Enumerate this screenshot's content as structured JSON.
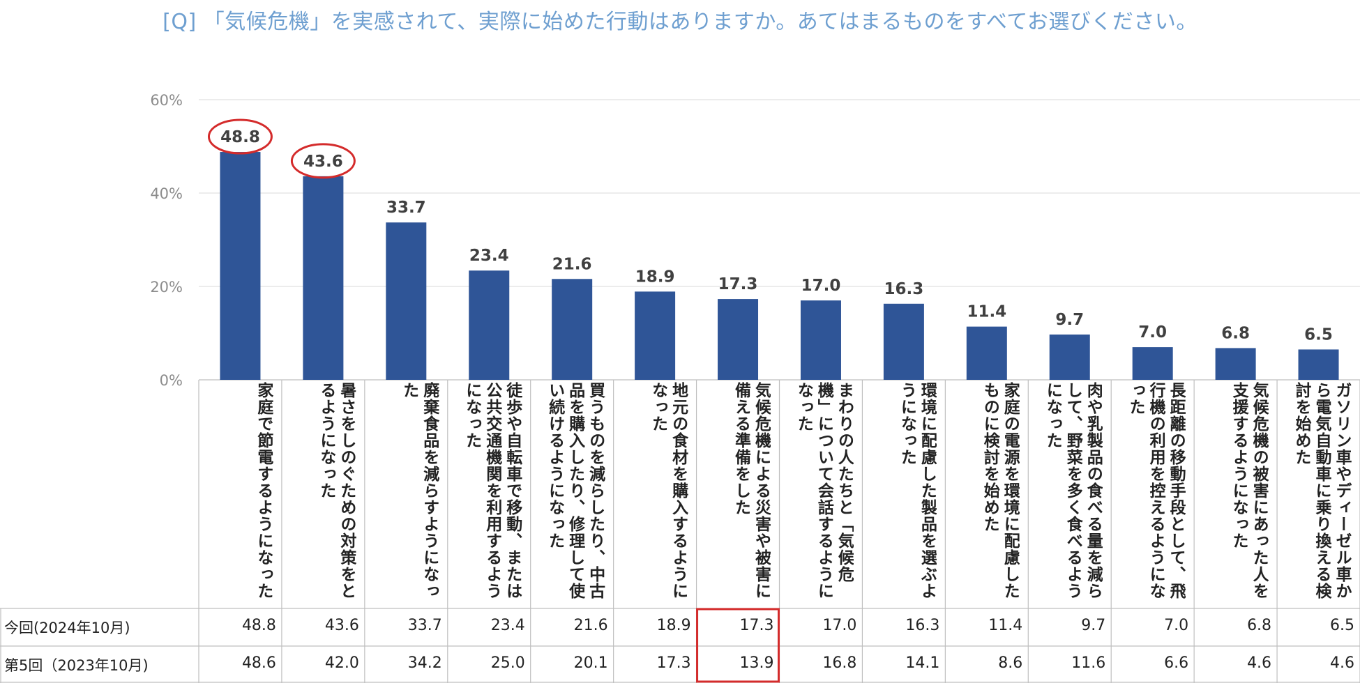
{
  "title": "[Q] 「気候危機」を実感されて、実際に始めた行動はありますか。あてはまるものをすべてお選びください。",
  "colors": {
    "bar": "#2f5597",
    "title": "#6e9fd0",
    "highlight": "#d42b2b"
  },
  "chart_data": {
    "type": "bar",
    "categories": [
      "家庭で節電するようになった",
      "暑さをしのぐための対策をとるようになった",
      "廃棄食品を減らすようになった",
      "徒歩や自転車で移動、または公共交通機関を利用するようになった",
      "買うものを減らしたり、中古品を購入したり、修理して使い続けるようになった",
      "地元の食材を購入するようになった",
      "気候危機による災害や被害に備える準備をした",
      "まわりの人たちと「気候危機」について会話するようになった",
      "環境に配慮した製品を選ぶようになった",
      "家庭の電源を環境に配慮したものに検討を始めた",
      "肉や乳製品の食べる量を減らして、野菜を多く食べるようになった",
      "長距離の移動手段として、飛行機の利用を控えるようになった",
      "気候危機の被害にあった人を支援するようになった",
      "ガソリン車やディーゼル車から電気自動車に乗り換える検討を始めた"
    ],
    "values": [
      48.8,
      43.6,
      33.7,
      23.4,
      21.6,
      18.9,
      17.3,
      17.0,
      16.3,
      11.4,
      9.7,
      7.0,
      6.8,
      6.5
    ],
    "data_labels": [
      "48.8",
      "43.6",
      "33.7",
      "23.4",
      "21.6",
      "18.9",
      "17.3",
      "17.0",
      "16.3",
      "11.4",
      "9.7",
      "7.0",
      "6.8",
      "6.5"
    ],
    "yticks": [
      "0%",
      "20%",
      "40%",
      "60%"
    ],
    "ylim": [
      0,
      60
    ],
    "grid": true,
    "circled_indices": [
      0,
      1
    ],
    "table": {
      "rows": [
        {
          "label": "今回(2024年10月)",
          "values": [
            "48.8",
            "43.6",
            "33.7",
            "23.4",
            "21.6",
            "18.9",
            "17.3",
            "17.0",
            "16.3",
            "11.4",
            "9.7",
            "7.0",
            "6.8",
            "6.5"
          ]
        },
        {
          "label": "第5回（2023年10月)",
          "values": [
            "48.6",
            "42.0",
            "34.2",
            "25.0",
            "20.1",
            "17.3",
            "13.9",
            "16.8",
            "14.1",
            "8.6",
            "11.6",
            "6.6",
            "4.6",
            "4.6"
          ]
        }
      ],
      "highlight_column": 6
    }
  }
}
